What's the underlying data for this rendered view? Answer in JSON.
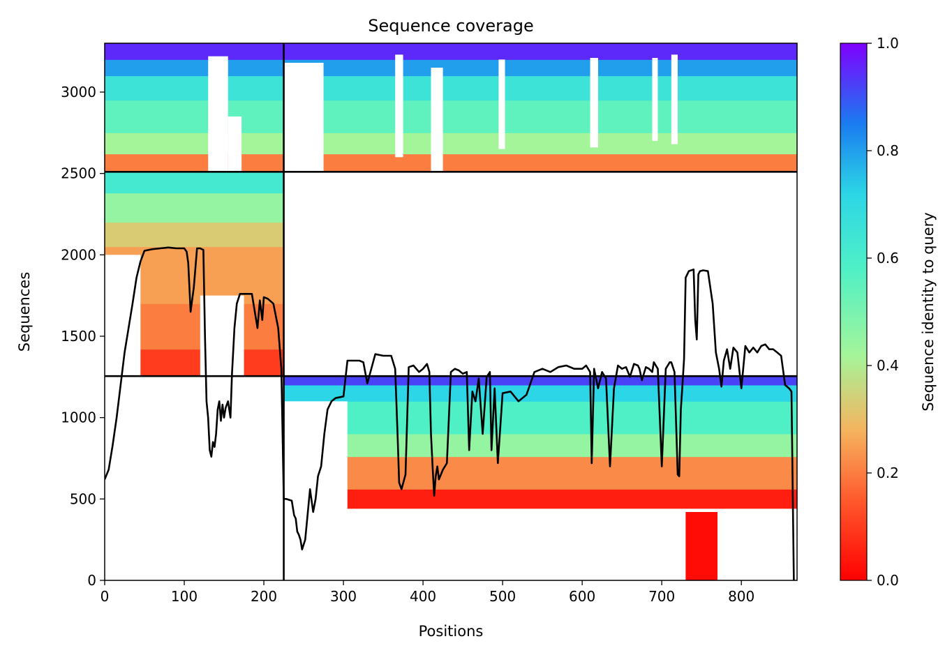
{
  "chart_data": {
    "type": "heatmap",
    "title": "Sequence coverage",
    "xlabel": "Positions",
    "ylabel": "Sequences",
    "xlim": [
      0,
      870
    ],
    "ylim": [
      0,
      3300
    ],
    "x_ticks": [
      "0",
      "100",
      "200",
      "300",
      "400",
      "500",
      "600",
      "700",
      "800"
    ],
    "y_ticks": [
      "0",
      "500",
      "1000",
      "1500",
      "2000",
      "2500",
      "3000"
    ],
    "colorbar": {
      "label": "Sequence identity to query",
      "range": [
        0,
        1
      ],
      "ticks": [
        "0.0",
        "0.2",
        "0.4",
        "0.6",
        "0.8",
        "1.0"
      ],
      "colormap": "rainbow_r"
    },
    "segment_boundaries": {
      "x": 225,
      "y": [
        1255,
        2510
      ]
    },
    "blocks": [
      {
        "name": "block-top-left",
        "x": [
          0,
          225
        ],
        "y": [
          2510,
          3300
        ],
        "identity_bands": [
          {
            "y": [
              2510,
              2620
            ],
            "identity": 0.2
          },
          {
            "y": [
              2620,
              2750
            ],
            "identity": 0.42
          },
          {
            "y": [
              2750,
              2950
            ],
            "identity": 0.55
          },
          {
            "y": [
              2950,
              3100
            ],
            "identity": 0.65
          },
          {
            "y": [
              3100,
              3200
            ],
            "identity": 0.8
          },
          {
            "y": [
              3200,
              3300
            ],
            "identity": 0.95
          }
        ],
        "gaps": [
          {
            "x": [
              130,
              155
            ],
            "y": [
              2510,
              3220
            ]
          },
          {
            "x": [
              155,
              172
            ],
            "y": [
              2510,
              2850
            ]
          }
        ]
      },
      {
        "name": "block-top-right",
        "x": [
          225,
          870
        ],
        "y": [
          2510,
          3300
        ],
        "identity_bands": [
          {
            "y": [
              2510,
              2620
            ],
            "identity": 0.2
          },
          {
            "y": [
              2620,
              2750
            ],
            "identity": 0.42
          },
          {
            "y": [
              2750,
              2950
            ],
            "identity": 0.55
          },
          {
            "y": [
              2950,
              3100
            ],
            "identity": 0.65
          },
          {
            "y": [
              3100,
              3200
            ],
            "identity": 0.8
          },
          {
            "y": [
              3200,
              3300
            ],
            "identity": 0.95
          }
        ],
        "gaps": [
          {
            "x": [
              225,
              275
            ],
            "y": [
              2510,
              3180
            ]
          },
          {
            "x": [
              365,
              375
            ],
            "y": [
              2600,
              3230
            ]
          },
          {
            "x": [
              410,
              425
            ],
            "y": [
              2510,
              3150
            ]
          },
          {
            "x": [
              495,
              503
            ],
            "y": [
              2650,
              3200
            ]
          },
          {
            "x": [
              610,
              620
            ],
            "y": [
              2660,
              3210
            ]
          },
          {
            "x": [
              688,
              695
            ],
            "y": [
              2700,
              3210
            ]
          },
          {
            "x": [
              712,
              720
            ],
            "y": [
              2680,
              3230
            ]
          }
        ]
      },
      {
        "name": "block-mid-left",
        "x": [
          0,
          225
        ],
        "y": [
          1255,
          2510
        ],
        "identity_bands": [
          {
            "y": [
              1255,
              1420
            ],
            "identity": 0.1
          },
          {
            "y": [
              1420,
              1700
            ],
            "identity": 0.2
          },
          {
            "y": [
              1700,
              2050
            ],
            "identity": 0.25
          },
          {
            "y": [
              2050,
              2200
            ],
            "identity": 0.33
          },
          {
            "y": [
              2200,
              2380
            ],
            "identity": 0.45
          },
          {
            "y": [
              2380,
              2510
            ],
            "identity": 0.62
          }
        ],
        "gaps": [
          {
            "x": [
              0,
              45
            ],
            "y": [
              1255,
              2000
            ]
          },
          {
            "x": [
              120,
              175
            ],
            "y": [
              1255,
              1750
            ]
          }
        ]
      },
      {
        "name": "block-bottom-right",
        "x": [
          225,
          870
        ],
        "y": [
          0,
          1255
        ],
        "identity_bands": [
          {
            "y": [
              440,
              560
            ],
            "identity": 0.05
          },
          {
            "y": [
              560,
              760
            ],
            "identity": 0.22
          },
          {
            "y": [
              760,
              900
            ],
            "identity": 0.45
          },
          {
            "y": [
              900,
              1100
            ],
            "identity": 0.58
          },
          {
            "y": [
              1100,
              1200
            ],
            "identity": 0.72
          },
          {
            "y": [
              1200,
              1255
            ],
            "identity": 0.92
          }
        ],
        "gaps": [
          {
            "x": [
              225,
              305
            ],
            "y": [
              0,
              1100
            ]
          },
          {
            "x": [
              305,
              870
            ],
            "y": [
              0,
              440
            ]
          }
        ],
        "extra": [
          {
            "x": [
              730,
              770
            ],
            "y": [
              0,
              420
            ],
            "identity": 0.02
          }
        ]
      }
    ],
    "coverage_line": {
      "x": [
        0,
        5,
        10,
        15,
        20,
        25,
        30,
        35,
        40,
        45,
        50,
        60,
        70,
        80,
        90,
        100,
        103,
        105,
        108,
        112,
        116,
        120,
        124,
        126,
        128,
        130,
        132,
        134,
        136,
        138,
        140,
        142,
        144,
        146,
        148,
        150,
        152,
        155,
        158,
        160,
        163,
        166,
        170,
        175,
        180,
        185,
        192,
        195,
        198,
        200,
        205,
        212,
        218,
        222,
        225,
        228,
        235,
        238,
        240,
        242,
        244,
        246,
        248,
        252,
        258,
        262,
        265,
        268,
        272,
        276,
        280,
        285,
        290,
        300,
        305,
        310,
        320,
        325,
        330,
        340,
        350,
        360,
        365,
        368,
        370,
        373,
        378,
        382,
        388,
        395,
        400,
        405,
        408,
        410,
        412,
        414,
        416,
        418,
        420,
        425,
        430,
        435,
        440,
        445,
        450,
        455,
        458,
        462,
        466,
        470,
        475,
        480,
        484,
        486,
        490,
        494,
        500,
        510,
        520,
        530,
        540,
        550,
        560,
        570,
        580,
        590,
        600,
        605,
        610,
        612,
        615,
        620,
        625,
        630,
        635,
        640,
        645,
        650,
        655,
        660,
        665,
        670,
        672,
        675,
        680,
        684,
        688,
        690,
        695,
        700,
        705,
        710,
        712,
        716,
        720,
        722,
        724,
        726,
        728,
        730,
        734,
        740,
        742,
        744,
        746,
        748,
        752,
        758,
        764,
        768,
        770,
        772,
        775,
        778,
        782,
        786,
        790,
        795,
        800,
        805,
        810,
        815,
        820,
        825,
        830,
        835,
        840,
        845,
        850,
        855,
        860,
        863,
        866,
        868,
        870
      ],
      "y": [
        620,
        680,
        830,
        1000,
        1200,
        1400,
        1550,
        1700,
        1860,
        1960,
        2025,
        2035,
        2040,
        2045,
        2040,
        2040,
        2020,
        1950,
        1650,
        1800,
        2040,
        2040,
        2030,
        1500,
        1100,
        1000,
        800,
        760,
        850,
        820,
        900,
        1050,
        1100,
        980,
        1080,
        1000,
        1060,
        1100,
        1000,
        1270,
        1550,
        1700,
        1760,
        1760,
        1760,
        1760,
        1550,
        1720,
        1600,
        1740,
        1730,
        1700,
        1550,
        1300,
        500,
        500,
        490,
        400,
        380,
        300,
        280,
        250,
        190,
        250,
        560,
        420,
        500,
        640,
        700,
        900,
        1050,
        1100,
        1120,
        1130,
        1350,
        1350,
        1350,
        1340,
        1210,
        1390,
        1380,
        1380,
        1300,
        900,
        600,
        560,
        650,
        1310,
        1320,
        1280,
        1300,
        1330,
        1280,
        900,
        700,
        520,
        640,
        700,
        620,
        680,
        720,
        1280,
        1300,
        1290,
        1270,
        1280,
        800,
        1160,
        1100,
        1240,
        900,
        1250,
        1280,
        800,
        1180,
        720,
        1150,
        1160,
        1100,
        1140,
        1280,
        1300,
        1280,
        1310,
        1320,
        1300,
        1300,
        1320,
        1280,
        720,
        1300,
        1180,
        1280,
        1240,
        700,
        1180,
        1320,
        1300,
        1310,
        1250,
        1330,
        1320,
        1300,
        1230,
        1310,
        1300,
        1280,
        1340,
        1300,
        700,
        1300,
        1340,
        1340,
        1280,
        650,
        640,
        1050,
        1200,
        1360,
        1860,
        1900,
        1910,
        1600,
        1480,
        1880,
        1900,
        1905,
        1900,
        1700,
        1400,
        1350,
        1300,
        1190,
        1350,
        1420,
        1300,
        1430,
        1400,
        1180,
        1440,
        1400,
        1430,
        1400,
        1440,
        1450,
        1420,
        1420,
        1400,
        1380,
        1200,
        1180,
        1160,
        0
      ]
    }
  }
}
